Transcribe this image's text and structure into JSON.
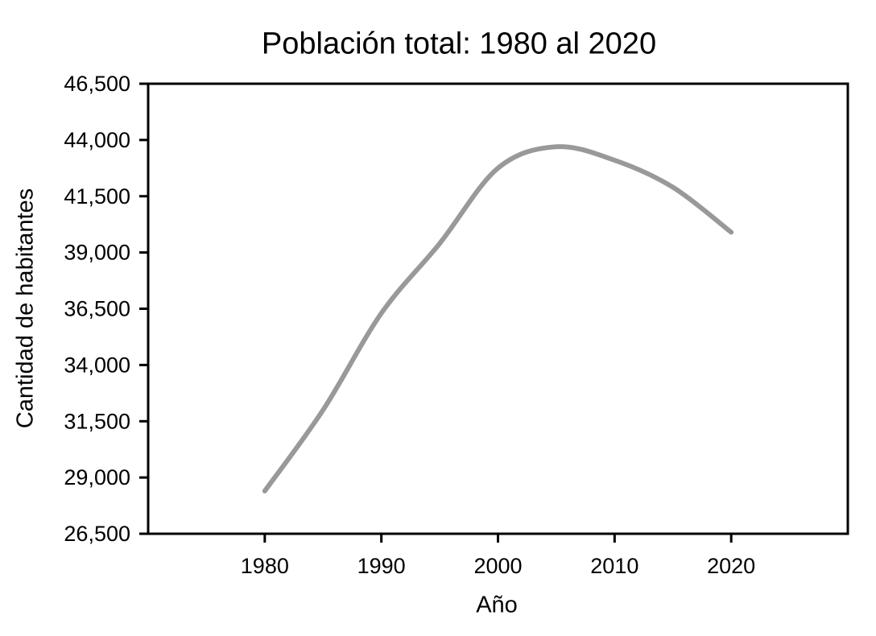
{
  "chart_data": {
    "type": "line",
    "title": "Población total: 1980 al 2020",
    "xlabel": "Año",
    "ylabel": "Cantidad de habitantes",
    "x": [
      1980,
      1985,
      1990,
      1995,
      2000,
      2005,
      2010,
      2015,
      2020
    ],
    "values": [
      28400,
      32000,
      36300,
      39400,
      42750,
      43700,
      43100,
      41900,
      39900
    ],
    "xlim": [
      1970,
      2030
    ],
    "ylim": [
      26500,
      46500
    ],
    "xticks": [
      1980,
      1990,
      2000,
      2010,
      2020
    ],
    "xtick_labels": [
      "1980",
      "1990",
      "2000",
      "2010",
      "2020"
    ],
    "yticks": [
      26500,
      29000,
      31500,
      34000,
      36500,
      39000,
      41500,
      44000,
      46500
    ],
    "ytick_labels": [
      "26,500",
      "29,000",
      "31,500",
      "34,000",
      "36,500",
      "39,000",
      "41,500",
      "44,000",
      "46,500"
    ],
    "grid": false,
    "legend": null,
    "line_color": "#999999",
    "axis_color": "#000000",
    "background_color": "#ffffff"
  }
}
